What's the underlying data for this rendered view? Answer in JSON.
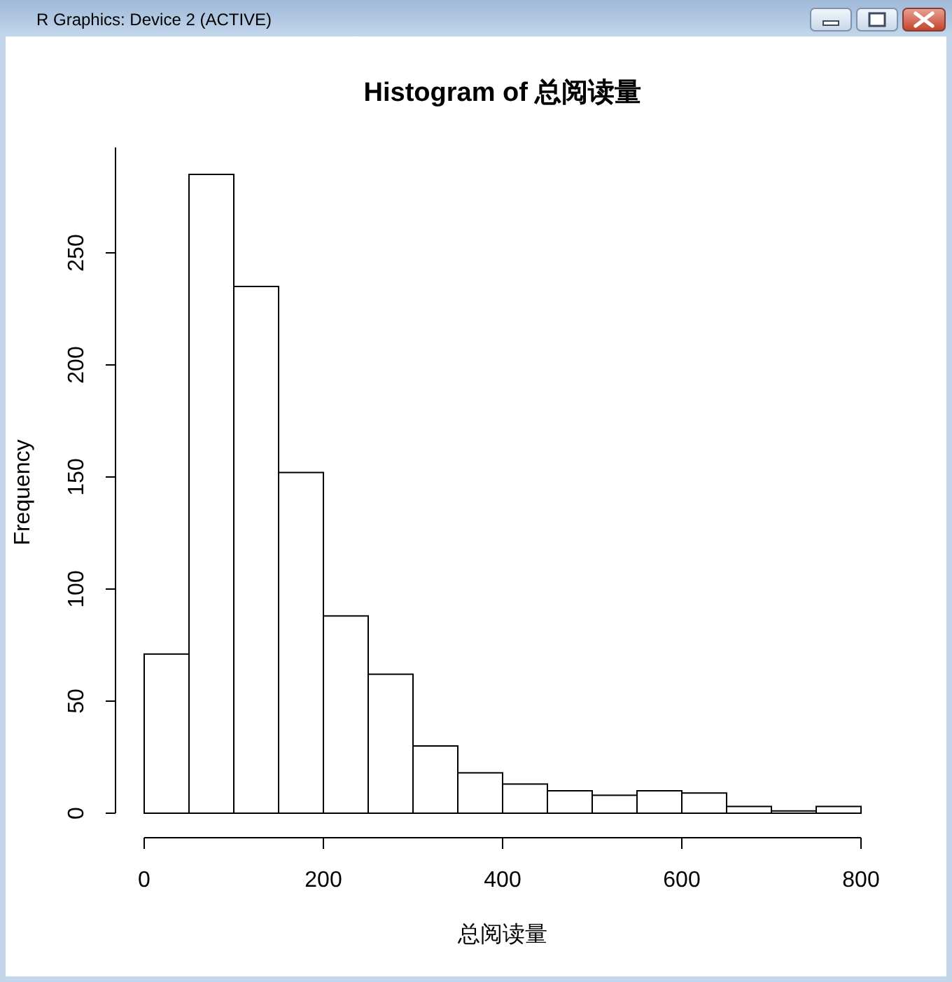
{
  "chart_data": {
    "type": "histogram",
    "title": "Histogram of 总阅读量",
    "xlabel": "总阅读量",
    "ylabel": "Frequency",
    "bins": [
      0,
      50,
      100,
      150,
      200,
      250,
      300,
      350,
      400,
      450,
      500,
      550,
      600,
      650,
      700,
      750,
      800
    ],
    "values": [
      71,
      285,
      235,
      152,
      88,
      62,
      30,
      18,
      13,
      10,
      8,
      10,
      9,
      3,
      1,
      3
    ],
    "color": "#ffffff",
    "xlim": [
      0,
      800
    ],
    "ylim": [
      0,
      297
    ],
    "xticks": [
      0,
      200,
      400,
      600,
      800
    ],
    "yticks": [
      0,
      50,
      100,
      150,
      200,
      250
    ],
    "annotations": [
      "R Graphics: Device 2 (ACTIVE)"
    ]
  }
}
